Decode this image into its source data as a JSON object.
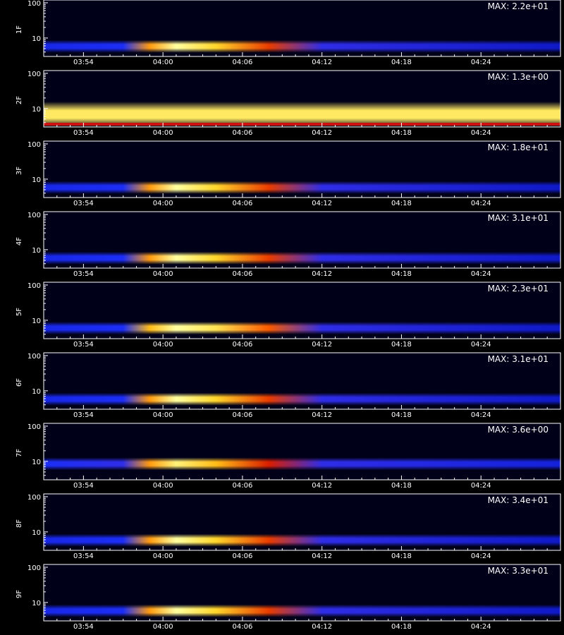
{
  "chart_data": {
    "type": "heatmap",
    "y_scale": "log",
    "ylim": [
      3,
      120
    ],
    "y_ticks": [
      {
        "value": 10,
        "label": "10"
      },
      {
        "value": 100,
        "label": "100"
      }
    ],
    "x_tick_labels": [
      "03:54",
      "04:00",
      "04:06",
      "04:12",
      "04:18",
      "04:24"
    ],
    "x_range": [
      "03:51",
      "04:30"
    ],
    "colormap": [
      "#000010",
      "#00008c",
      "#1e32ff",
      "#c80000",
      "#ff6400",
      "#ffd21e",
      "#ffffa0"
    ],
    "panels": [
      {
        "label": "1F",
        "max_label": "MAX: 2.2e+01",
        "band_center": 5.8,
        "intensity": [
          {
            "t": "03:51",
            "v": 0.3
          },
          {
            "t": "03:57",
            "v": 0.32
          },
          {
            "t": "03:59",
            "v": 0.75
          },
          {
            "t": "04:01",
            "v": 1.0
          },
          {
            "t": "04:04",
            "v": 0.85
          },
          {
            "t": "04:08",
            "v": 0.6
          },
          {
            "t": "04:12",
            "v": 0.35
          },
          {
            "t": "04:30",
            "v": 0.25
          }
        ]
      },
      {
        "label": "2F",
        "max_label": "MAX: 1.3e+00",
        "band_center": 6.0,
        "intensity": [
          {
            "t": "03:51",
            "v": 0.92
          },
          {
            "t": "04:30",
            "v": 0.92
          }
        ]
      },
      {
        "label": "3F",
        "max_label": "MAX: 1.8e+01",
        "band_center": 5.8,
        "intensity": [
          {
            "t": "03:51",
            "v": 0.3
          },
          {
            "t": "03:57",
            "v": 0.32
          },
          {
            "t": "03:59",
            "v": 0.75
          },
          {
            "t": "04:01",
            "v": 1.0
          },
          {
            "t": "04:04",
            "v": 0.85
          },
          {
            "t": "04:08",
            "v": 0.6
          },
          {
            "t": "04:12",
            "v": 0.35
          },
          {
            "t": "04:30",
            "v": 0.25
          }
        ]
      },
      {
        "label": "4F",
        "max_label": "MAX: 3.1e+01",
        "band_center": 5.8,
        "intensity": [
          {
            "t": "03:51",
            "v": 0.3
          },
          {
            "t": "03:57",
            "v": 0.32
          },
          {
            "t": "03:59",
            "v": 0.75
          },
          {
            "t": "04:01",
            "v": 1.0
          },
          {
            "t": "04:04",
            "v": 0.85
          },
          {
            "t": "04:08",
            "v": 0.6
          },
          {
            "t": "04:12",
            "v": 0.35
          },
          {
            "t": "04:30",
            "v": 0.25
          }
        ]
      },
      {
        "label": "5F",
        "max_label": "MAX: 2.3e+01",
        "band_center": 6.0,
        "intensity": [
          {
            "t": "03:51",
            "v": 0.3
          },
          {
            "t": "03:57",
            "v": 0.32
          },
          {
            "t": "03:59",
            "v": 0.8
          },
          {
            "t": "04:01",
            "v": 1.0
          },
          {
            "t": "04:04",
            "v": 0.9
          },
          {
            "t": "04:08",
            "v": 0.65
          },
          {
            "t": "04:12",
            "v": 0.35
          },
          {
            "t": "04:30",
            "v": 0.25
          }
        ]
      },
      {
        "label": "6F",
        "max_label": "MAX: 3.1e+01",
        "band_center": 5.8,
        "intensity": [
          {
            "t": "03:51",
            "v": 0.3
          },
          {
            "t": "03:57",
            "v": 0.32
          },
          {
            "t": "03:59",
            "v": 0.75
          },
          {
            "t": "04:01",
            "v": 1.0
          },
          {
            "t": "04:04",
            "v": 0.85
          },
          {
            "t": "04:08",
            "v": 0.6
          },
          {
            "t": "04:12",
            "v": 0.35
          },
          {
            "t": "04:30",
            "v": 0.25
          }
        ]
      },
      {
        "label": "7F",
        "max_label": "MAX: 3.6e+00",
        "band_center": 8.5,
        "intensity": [
          {
            "t": "03:51",
            "v": 0.32
          },
          {
            "t": "03:57",
            "v": 0.35
          },
          {
            "t": "03:59",
            "v": 0.75
          },
          {
            "t": "04:01",
            "v": 0.95
          },
          {
            "t": "04:04",
            "v": 0.8
          },
          {
            "t": "04:08",
            "v": 0.55
          },
          {
            "t": "04:12",
            "v": 0.35
          },
          {
            "t": "04:30",
            "v": 0.28
          }
        ]
      },
      {
        "label": "8F",
        "max_label": "MAX: 3.4e+01",
        "band_center": 5.8,
        "intensity": [
          {
            "t": "03:51",
            "v": 0.3
          },
          {
            "t": "03:57",
            "v": 0.32
          },
          {
            "t": "03:59",
            "v": 0.75
          },
          {
            "t": "04:01",
            "v": 1.0
          },
          {
            "t": "04:04",
            "v": 0.85
          },
          {
            "t": "04:08",
            "v": 0.6
          },
          {
            "t": "04:12",
            "v": 0.35
          },
          {
            "t": "04:30",
            "v": 0.25
          }
        ]
      },
      {
        "label": "9F",
        "max_label": "MAX: 3.3e+01",
        "band_center": 5.8,
        "intensity": [
          {
            "t": "03:51",
            "v": 0.3
          },
          {
            "t": "03:57",
            "v": 0.32
          },
          {
            "t": "03:59",
            "v": 0.75
          },
          {
            "t": "04:01",
            "v": 1.0
          },
          {
            "t": "04:04",
            "v": 0.85
          },
          {
            "t": "04:08",
            "v": 0.6
          },
          {
            "t": "04:12",
            "v": 0.35
          },
          {
            "t": "04:30",
            "v": 0.25
          }
        ]
      }
    ]
  }
}
